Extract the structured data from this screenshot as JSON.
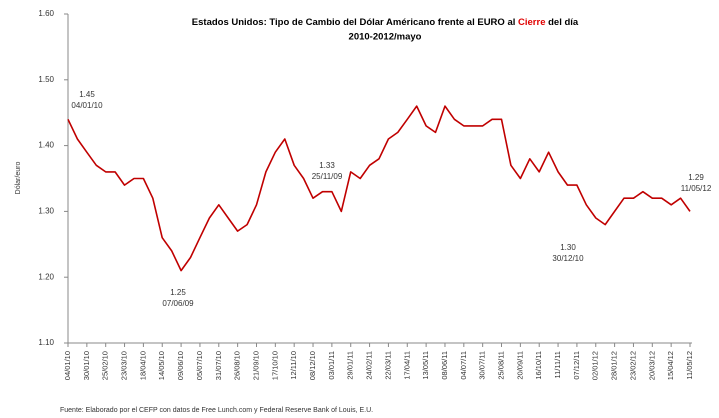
{
  "chart_data": {
    "type": "line",
    "title_parts": [
      "Estados Unidos: Tipo de Cambio del Dólar Américano frente al EURO al ",
      "Cierre",
      " del día"
    ],
    "subtitle": "2010-2012/mayo",
    "y_label": "Dólar/euro",
    "source": "Fuente: Elaborado por el CEFP con datos de Free Lunch.com y Federal Reserve Bank of Louis, E.U.",
    "categories": [
      "04/01/10",
      null,
      "30/01/10",
      null,
      "25/02/10",
      null,
      "23/03/10",
      null,
      "18/04/10",
      null,
      "14/05/10",
      null,
      "09/06/10",
      null,
      "05/07/10",
      null,
      "31/07/10",
      null,
      "26/08/10",
      null,
      "21/09/10",
      null,
      "17/10/10",
      null,
      "12/11/10",
      null,
      "08/12/10",
      null,
      "03/01/11",
      null,
      "29/01/11",
      null,
      "24/02/11",
      null,
      "22/03/11",
      null,
      "17/04/11",
      null,
      "13/05/11",
      null,
      "08/06/11",
      null,
      "04/07/11",
      null,
      "30/07/11",
      null,
      "25/08/11",
      null,
      "20/09/11",
      null,
      "16/10/11",
      null,
      "11/11/11",
      null,
      "07/12/11",
      null,
      "02/01/12",
      null,
      "28/01/12",
      null,
      "23/02/12",
      null,
      "20/03/12",
      null,
      "15/04/12",
      null,
      "11/05/12"
    ],
    "series": [
      {
        "name": "Dólar/euro",
        "color": "#c00000",
        "values": [
          1.44,
          1.41,
          1.39,
          1.37,
          1.36,
          1.36,
          1.34,
          1.35,
          1.35,
          1.32,
          1.26,
          1.24,
          1.21,
          1.23,
          1.26,
          1.29,
          1.31,
          1.29,
          1.27,
          1.28,
          1.31,
          1.36,
          1.39,
          1.41,
          1.37,
          1.35,
          1.32,
          1.33,
          1.33,
          1.3,
          1.36,
          1.35,
          1.37,
          1.38,
          1.41,
          1.42,
          1.44,
          1.46,
          1.43,
          1.42,
          1.46,
          1.44,
          1.43,
          1.43,
          1.43,
          1.44,
          1.44,
          1.37,
          1.35,
          1.38,
          1.36,
          1.39,
          1.36,
          1.34,
          1.34,
          1.31,
          1.29,
          1.28,
          1.3,
          1.32,
          1.32,
          1.33,
          1.32,
          1.32,
          1.31,
          1.32,
          1.3
        ]
      }
    ],
    "ylim": [
      1.1,
      1.6
    ],
    "yticks": [
      {
        "value": 1.1,
        "label": "1.10"
      },
      {
        "value": 1.2,
        "label": "1.20"
      },
      {
        "value": 1.3,
        "label": "1.30"
      },
      {
        "value": 1.4,
        "label": "1.40"
      },
      {
        "value": 1.5,
        "label": "1.50"
      },
      {
        "value": 1.6,
        "label": "1.60"
      }
    ],
    "grid": false,
    "annotations": [
      {
        "label": "1.45",
        "date": "04/01/10"
      },
      {
        "label": "1.25",
        "date": "07/06/09"
      },
      {
        "label": "1.33",
        "date": "25/11/09"
      },
      {
        "label": "1.30",
        "date": "30/12/10"
      },
      {
        "label": "1.29",
        "date": "11/05/12"
      }
    ]
  }
}
